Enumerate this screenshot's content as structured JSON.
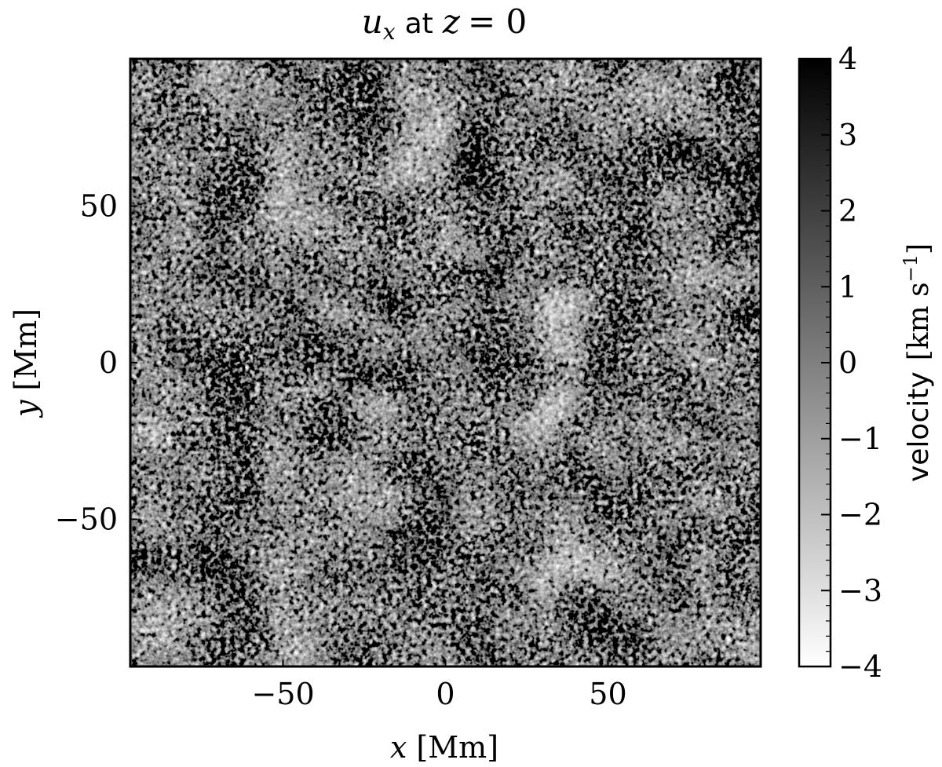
{
  "chart_data": {
    "type": "heatmap",
    "title": {
      "var": "u",
      "sub": "x",
      "word": "at",
      "cond_var": "z",
      "cond_eq": "= 0"
    },
    "xlabel": {
      "var": "x",
      "unit": "[Mm]"
    },
    "ylabel": {
      "var": "y",
      "unit": "[Mm]"
    },
    "xlim": [
      -97,
      97
    ],
    "ylim": [
      -97,
      97
    ],
    "xticks": [
      {
        "value": -50,
        "label": "−50"
      },
      {
        "value": 0,
        "label": "0"
      },
      {
        "value": 50,
        "label": "50"
      }
    ],
    "yticks": [
      {
        "value": -50,
        "label": "−50"
      },
      {
        "value": 0,
        "label": "0"
      },
      {
        "value": 50,
        "label": "50"
      }
    ],
    "colormap": "grayscale (white = low, black = high)",
    "colorbar": {
      "label": "velocity",
      "unit": "[km s",
      "unit_exp": "−1",
      "unit_close": "]",
      "range": [
        -4,
        4
      ],
      "ticks": [
        {
          "value": 4,
          "label": "4"
        },
        {
          "value": 3,
          "label": "3"
        },
        {
          "value": 2,
          "label": "2"
        },
        {
          "value": 1,
          "label": "1"
        },
        {
          "value": 0,
          "label": "0"
        },
        {
          "value": -1,
          "label": "−1"
        },
        {
          "value": -2,
          "label": "−2"
        },
        {
          "value": -3,
          "label": "−3"
        },
        {
          "value": -4,
          "label": "−4"
        }
      ]
    },
    "colors": {
      "low": "#ffffff",
      "high": "#000000",
      "frame": "#000000"
    }
  }
}
